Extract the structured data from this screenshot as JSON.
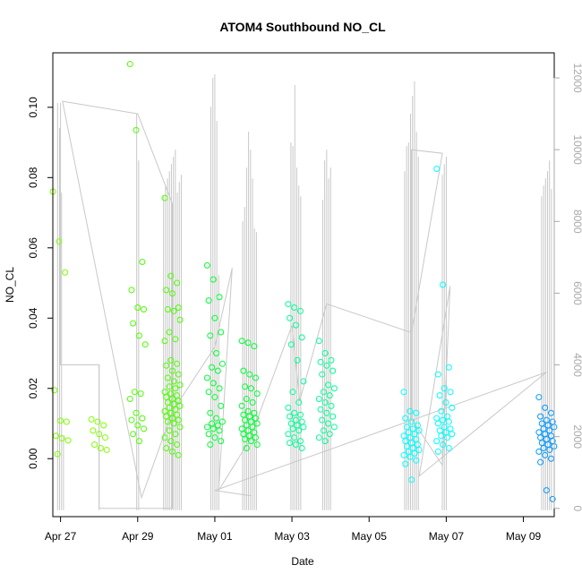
{
  "chart_data": {
    "type": "scatter",
    "title": "ATOM4 Southbound NO_CL",
    "xlabel": "Date",
    "ylabel": "NO_CL",
    "x_tick_labels": [
      "Apr 27",
      "Apr 29",
      "May 01",
      "May 03",
      "May 05",
      "May 07",
      "May 09"
    ],
    "x_ticks_day": [
      27.0,
      29.0,
      31.0,
      33.0,
      35.0,
      37.0,
      39.0
    ],
    "xlim_day": [
      26.8,
      39.8
    ],
    "ylim": [
      -0.0165,
      0.1155
    ],
    "y_ticks": [
      0.0,
      0.02,
      0.04,
      0.06,
      0.08,
      0.1
    ],
    "y_tick_labels": [
      "0.00",
      "0.02",
      "0.04",
      "0.06",
      "0.08",
      "0.10"
    ],
    "y2lim": [
      -230,
      12700
    ],
    "y2_ticks": [
      0,
      2000,
      4000,
      6000,
      8000,
      10000,
      12000
    ],
    "y2_tick_labels": [
      "0",
      "2000",
      "4000",
      "6000",
      "8000",
      "10000",
      "12000"
    ],
    "grid": false,
    "secondary_series_color": "#c8c8c8",
    "point_colors": [
      "#80ff00",
      "#4dff00",
      "#00ff33",
      "#00ff99",
      "#00ffff",
      "#0099ff"
    ],
    "clusters": [
      {
        "day": 27.0,
        "color": "#80ff00",
        "points": [
          0.076,
          0.0618,
          0.053,
          0.0195,
          0.0108,
          0.0105,
          0.0065,
          0.0058,
          0.0052,
          0.0013
        ]
      },
      {
        "day": 28.0,
        "color": "#80ff00",
        "points": [
          0.0112,
          0.0105,
          0.0095,
          0.008,
          0.007,
          0.006,
          0.004,
          0.003,
          0.0025
        ]
      },
      {
        "day": 29.0,
        "color": "#4dff00",
        "points": [
          0.1123,
          0.0935,
          0.056,
          0.048,
          0.043,
          0.0425,
          0.0385,
          0.035,
          0.0325,
          0.019,
          0.0185,
          0.017,
          0.013,
          0.0115,
          0.011,
          0.0095,
          0.0085,
          0.007,
          0.005
        ]
      },
      {
        "day": 29.9,
        "color": "#4dff00",
        "points": [
          0.0742,
          0.052,
          0.05,
          0.048,
          0.047,
          0.043,
          0.0425,
          0.042,
          0.0395,
          0.036,
          0.034,
          0.0335,
          0.028,
          0.027,
          0.0265,
          0.025,
          0.024,
          0.023,
          0.022,
          0.021,
          0.0205,
          0.02,
          0.019,
          0.0185,
          0.018,
          0.0175,
          0.017,
          0.0165,
          0.016,
          0.0155,
          0.015,
          0.0145,
          0.014,
          0.0135,
          0.013,
          0.0125,
          0.012,
          0.0115,
          0.011,
          0.0105,
          0.01,
          0.009,
          0.008,
          0.007,
          0.006,
          0.005,
          0.004,
          0.003,
          0.002,
          0.001
        ]
      },
      {
        "day": 31.0,
        "color": "#00ff33",
        "points": [
          0.055,
          0.051,
          0.046,
          0.045,
          0.04,
          0.036,
          0.035,
          0.03,
          0.027,
          0.026,
          0.025,
          0.023,
          0.0215,
          0.02,
          0.019,
          0.0175,
          0.015,
          0.013,
          0.0115,
          0.0105,
          0.01,
          0.0095,
          0.009,
          0.0085,
          0.008,
          0.007,
          0.006,
          0.005,
          0.004
        ]
      },
      {
        "day": 31.9,
        "color": "#00ff33",
        "points": [
          0.0335,
          0.033,
          0.032,
          0.025,
          0.024,
          0.023,
          0.0205,
          0.02,
          0.0185,
          0.017,
          0.016,
          0.015,
          0.0135,
          0.013,
          0.0125,
          0.012,
          0.0115,
          0.011,
          0.0105,
          0.01,
          0.0095,
          0.009,
          0.0085,
          0.008,
          0.0075,
          0.007,
          0.0065,
          0.006,
          0.0055,
          0.005,
          0.004,
          0.003
        ]
      },
      {
        "day": 33.1,
        "color": "#00ff99",
        "points": [
          0.044,
          0.043,
          0.042,
          0.04,
          0.038,
          0.0345,
          0.0325,
          0.028,
          0.022,
          0.019,
          0.016,
          0.0145,
          0.013,
          0.0125,
          0.012,
          0.011,
          0.0105,
          0.01,
          0.0095,
          0.009,
          0.0085,
          0.008,
          0.007,
          0.006,
          0.005,
          0.0045,
          0.004,
          0.003
        ]
      },
      {
        "day": 33.9,
        "color": "#00ff99",
        "points": [
          0.0335,
          0.03,
          0.028,
          0.0275,
          0.0265,
          0.025,
          0.024,
          0.021,
          0.02,
          0.019,
          0.018,
          0.017,
          0.016,
          0.015,
          0.014,
          0.013,
          0.012,
          0.011,
          0.01,
          0.009,
          0.008,
          0.007,
          0.006,
          0.005
        ]
      },
      {
        "day": 36.1,
        "color": "#00ffff",
        "points": [
          0.019,
          0.0135,
          0.013,
          0.0115,
          0.0105,
          0.0095,
          0.009,
          0.0085,
          0.008,
          0.0075,
          0.007,
          0.0065,
          0.006,
          0.0055,
          0.005,
          0.0045,
          0.004,
          0.0035,
          0.003,
          0.0025,
          0.002,
          0.0015,
          0.001,
          0.0005,
          -0.0005,
          -0.0015,
          -0.006
        ]
      },
      {
        "day": 36.95,
        "color": "#00ffff",
        "points": [
          0.0825,
          0.0495,
          0.026,
          0.024,
          0.02,
          0.019,
          0.018,
          0.016,
          0.0145,
          0.0135,
          0.012,
          0.0115,
          0.011,
          0.0105,
          0.01,
          0.009,
          0.0085,
          0.008,
          0.0075,
          0.007,
          0.0065,
          0.006,
          0.005,
          0.004,
          0.003,
          0.002
        ]
      },
      {
        "day": 39.6,
        "color": "#0099ff",
        "points": [
          0.0175,
          0.0145,
          0.013,
          0.012,
          0.011,
          0.0105,
          0.01,
          0.0095,
          0.009,
          0.0085,
          0.008,
          0.0075,
          0.007,
          0.0065,
          0.006,
          0.0055,
          0.005,
          0.0045,
          0.004,
          0.0035,
          0.003,
          0.0025,
          0.002,
          0.001,
          0.0,
          -0.001,
          -0.009,
          -0.0115
        ]
      }
    ],
    "secondary_spikes": [
      {
        "day": 27.0,
        "heights": [
          11300,
          10600,
          8800,
          2000
        ]
      },
      {
        "day": 28.0,
        "heights": [
          4000
        ]
      },
      {
        "day": 29.0,
        "heights": [
          11000,
          9700
        ]
      },
      {
        "day": 29.9,
        "heights": [
          8700,
          9000,
          9200,
          9400,
          9600,
          9800,
          10000,
          8800,
          9100,
          9300
        ]
      },
      {
        "day": 31.0,
        "heights": [
          11200,
          12000,
          12100,
          10800,
          6500
        ]
      },
      {
        "day": 31.9,
        "heights": [
          8000,
          8400,
          9500,
          10500,
          10000,
          9200,
          7800,
          7700
        ]
      },
      {
        "day": 33.1,
        "heights": [
          10200,
          10100,
          11800,
          9500,
          9000,
          8700
        ]
      },
      {
        "day": 33.9,
        "heights": [
          8600,
          9700,
          10000,
          9200,
          9500
        ]
      },
      {
        "day": 36.1,
        "heights": [
          9400,
          10100,
          10200,
          11000,
          11500,
          11900,
          10500,
          9800
        ]
      },
      {
        "day": 36.95,
        "heights": [
          9300,
          9600,
          9800
        ]
      },
      {
        "day": 39.6,
        "heights": [
          8700,
          9000,
          9200,
          9400,
          9700,
          8900
        ]
      }
    ],
    "secondary_path": [
      [
        27.0,
        11300
      ],
      [
        27.0,
        4000
      ],
      [
        28.0,
        4000
      ],
      [
        28.0,
        0
      ],
      [
        29.0,
        0
      ],
      [
        29.9,
        0
      ],
      [
        29.9,
        8500
      ],
      [
        29.0,
        11000
      ],
      [
        27.05,
        11350
      ],
      [
        29.1,
        300
      ],
      [
        29.9,
        2700
      ],
      [
        31.0,
        4500
      ],
      [
        31.45,
        6700
      ],
      [
        31.1,
        500
      ],
      [
        31.9,
        1900
      ],
      [
        33.0,
        5100
      ],
      [
        33.2,
        3000
      ],
      [
        33.9,
        5700
      ],
      [
        36.1,
        4900
      ],
      [
        36.9,
        9900
      ],
      [
        36.1,
        10000
      ],
      [
        36.1,
        2500
      ],
      [
        36.9,
        1200
      ],
      [
        37.1,
        6200
      ],
      [
        36.3,
        900
      ],
      [
        39.6,
        3800
      ],
      [
        31.0,
        500
      ],
      [
        31.95,
        350
      ]
    ]
  }
}
